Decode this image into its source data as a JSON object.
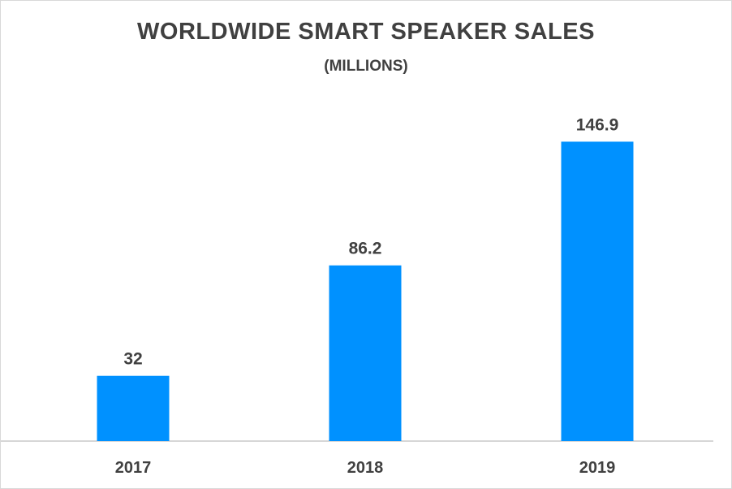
{
  "chart_data": {
    "type": "bar",
    "title": "WORLDWIDE SMART SPEAKER SALES",
    "subtitle": "(MILLIONS)",
    "categories": [
      "2017",
      "2018",
      "2019"
    ],
    "values": [
      32,
      86.2,
      146.9
    ],
    "data_labels": [
      "32",
      "86.2",
      "146.9"
    ],
    "xlabel": "",
    "ylabel": "",
    "ylim": [
      0,
      165
    ],
    "grid": false,
    "legend": "none",
    "bar_color": "#0091FF",
    "text_color": "#404040",
    "axis_color": "#c8c8c8"
  }
}
